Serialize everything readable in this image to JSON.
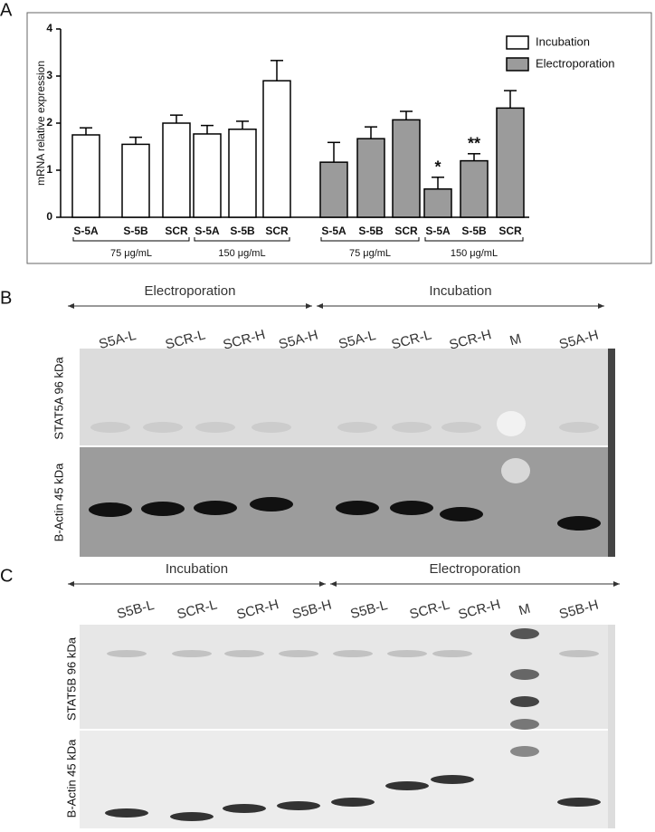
{
  "chart_data": {
    "type": "bar",
    "panel_label": "A",
    "ylabel": "mRNA relative expression",
    "categories": [
      "S-5A",
      "S-5B",
      "SCR",
      "S-5A",
      "S-5B",
      "SCR",
      "S-5A",
      "S-5B",
      "SCR",
      "S-5A",
      "S-5B",
      "SCR"
    ],
    "groups": [
      "75 μg/mL",
      "150 μg/mL",
      "75 μg/mL",
      "150 μg/mL"
    ],
    "series": [
      {
        "name": "Incubation",
        "color": "#ffffff",
        "values": [
          1.75,
          1.55,
          2.0,
          1.77,
          1.87,
          2.9,
          null,
          null,
          null,
          null,
          null,
          null
        ],
        "errors": [
          0.15,
          0.15,
          0.17,
          0.18,
          0.17,
          0.43,
          null,
          null,
          null,
          null,
          null,
          null
        ]
      },
      {
        "name": "Electroporation",
        "color": "#9b9b9b",
        "values": [
          null,
          null,
          null,
          null,
          null,
          null,
          1.17,
          1.67,
          2.07,
          0.6,
          1.2,
          2.32
        ],
        "errors": [
          null,
          null,
          null,
          null,
          null,
          null,
          0.42,
          0.25,
          0.18,
          0.25,
          0.15,
          0.37
        ]
      }
    ],
    "annotations": [
      null,
      null,
      null,
      null,
      null,
      null,
      null,
      null,
      null,
      "*",
      "**",
      null
    ],
    "ylim": [
      0,
      4
    ],
    "yticks": [
      0,
      1,
      2,
      3,
      4
    ],
    "legend": "upper right"
  },
  "blots": [
    {
      "panel_label": "B",
      "headers": [
        "Electroporation",
        "Incubation"
      ],
      "lanes": [
        "S5A-L",
        "SCR-L",
        "SCR-H",
        "S5A-H",
        "S5A-L",
        "SCR-L",
        "SCR-H",
        "M",
        "S5A-H"
      ],
      "rows": [
        "STAT5A 96 kDa",
        "B-Actin 45 kDa"
      ]
    },
    {
      "panel_label": "C",
      "headers": [
        "Incubation",
        "Electroporation"
      ],
      "lanes": [
        "S5B-L",
        "SCR-L",
        "SCR-H",
        "S5B-H",
        "S5B-L",
        "SCR-L",
        "SCR-H",
        "M",
        "S5B-H"
      ],
      "rows": [
        "STAT5B 96 kDa",
        "B-Actin 45 kDa"
      ]
    }
  ]
}
